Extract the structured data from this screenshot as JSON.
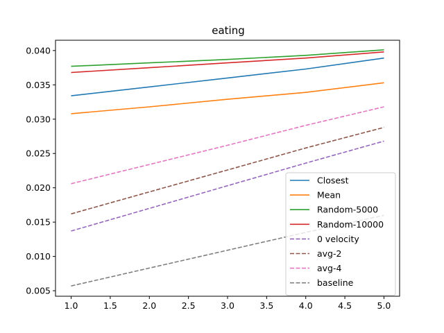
{
  "chart_data": {
    "type": "line",
    "title": "eating",
    "xlabel": "",
    "ylabel": "",
    "xlim": [
      0.8,
      5.2
    ],
    "ylim": [
      0.0042,
      0.0415
    ],
    "xticks": [
      1.0,
      1.5,
      2.0,
      2.5,
      3.0,
      3.5,
      4.0,
      4.5,
      5.0
    ],
    "xtick_labels": [
      "1.0",
      "1.5",
      "2.0",
      "2.5",
      "3.0",
      "3.5",
      "4.0",
      "4.5",
      "5.0"
    ],
    "yticks": [
      0.005,
      0.01,
      0.015,
      0.02,
      0.025,
      0.03,
      0.035,
      0.04
    ],
    "ytick_labels": [
      "0.005",
      "0.010",
      "0.015",
      "0.020",
      "0.025",
      "0.030",
      "0.035",
      "0.040"
    ],
    "grid": false,
    "legend_position": "bottom-right",
    "x": [
      1,
      2,
      3,
      4,
      5
    ],
    "series": [
      {
        "name": "Closest",
        "color": "#1f77b4",
        "dash": "solid",
        "values": [
          0.0334,
          0.0347,
          0.036,
          0.0373,
          0.0389
        ]
      },
      {
        "name": "Mean",
        "color": "#ff7f0e",
        "dash": "solid",
        "values": [
          0.0308,
          0.0318,
          0.0329,
          0.0339,
          0.0353
        ]
      },
      {
        "name": "Random-5000",
        "color": "#2ca02c",
        "dash": "solid",
        "values": [
          0.0377,
          0.0382,
          0.0387,
          0.0393,
          0.0401
        ]
      },
      {
        "name": "Random-10000",
        "color": "#d62728",
        "dash": "solid",
        "values": [
          0.0368,
          0.0375,
          0.0382,
          0.0389,
          0.0398
        ]
      },
      {
        "name": "0 velocity",
        "color": "#9467bd",
        "dash": "dashed",
        "values": [
          0.0137,
          0.017,
          0.0203,
          0.0236,
          0.0268
        ]
      },
      {
        "name": "avg-2",
        "color": "#8c564b",
        "dash": "dashed",
        "values": [
          0.0162,
          0.0194,
          0.0226,
          0.0258,
          0.0288
        ]
      },
      {
        "name": "avg-4",
        "color": "#e377c2",
        "dash": "dashed",
        "values": [
          0.0206,
          0.0234,
          0.0262,
          0.0291,
          0.0318
        ]
      },
      {
        "name": "baseline",
        "color": "#7f7f7f",
        "dash": "dashed",
        "values": [
          0.0057,
          0.0083,
          0.0109,
          0.0135,
          0.016
        ]
      }
    ]
  }
}
